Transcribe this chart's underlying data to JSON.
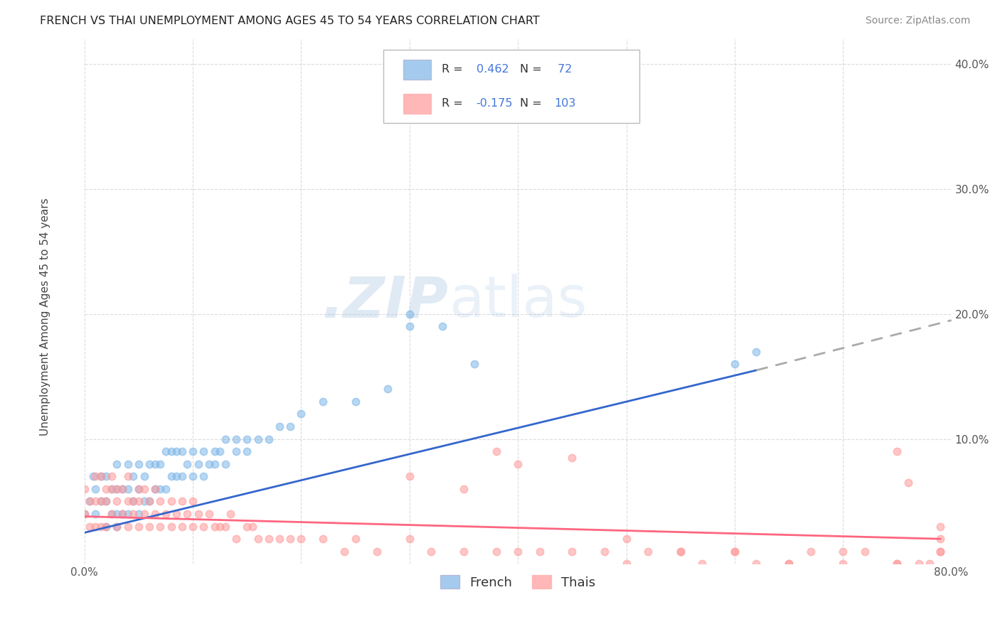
{
  "title": "FRENCH VS THAI UNEMPLOYMENT AMONG AGES 45 TO 54 YEARS CORRELATION CHART",
  "source": "Source: ZipAtlas.com",
  "ylabel": "Unemployment Among Ages 45 to 54 years",
  "xlim": [
    0.0,
    0.8
  ],
  "ylim": [
    0.0,
    0.42
  ],
  "french_color": "#7EB6E8",
  "thai_color": "#FF9999",
  "french_R": 0.462,
  "french_N": 72,
  "thai_R": -0.175,
  "thai_N": 103,
  "french_line_color": "#3366CC",
  "thai_line_color": "#FF6680",
  "background_color": "#FFFFFF",
  "grid_color": "#CCCCCC",
  "french_x": [
    0.0,
    0.005,
    0.008,
    0.01,
    0.01,
    0.015,
    0.015,
    0.02,
    0.02,
    0.02,
    0.025,
    0.025,
    0.03,
    0.03,
    0.03,
    0.03,
    0.035,
    0.035,
    0.04,
    0.04,
    0.04,
    0.045,
    0.045,
    0.05,
    0.05,
    0.05,
    0.055,
    0.055,
    0.06,
    0.06,
    0.065,
    0.065,
    0.07,
    0.07,
    0.075,
    0.075,
    0.08,
    0.08,
    0.085,
    0.085,
    0.09,
    0.09,
    0.095,
    0.1,
    0.1,
    0.105,
    0.11,
    0.11,
    0.115,
    0.12,
    0.12,
    0.125,
    0.13,
    0.13,
    0.14,
    0.14,
    0.15,
    0.15,
    0.16,
    0.17,
    0.18,
    0.19,
    0.2,
    0.22,
    0.25,
    0.28,
    0.3,
    0.3,
    0.33,
    0.36,
    0.6,
    0.62
  ],
  "french_y": [
    0.04,
    0.05,
    0.07,
    0.04,
    0.06,
    0.05,
    0.07,
    0.03,
    0.05,
    0.07,
    0.04,
    0.06,
    0.03,
    0.04,
    0.06,
    0.08,
    0.04,
    0.06,
    0.04,
    0.06,
    0.08,
    0.05,
    0.07,
    0.04,
    0.06,
    0.08,
    0.05,
    0.07,
    0.05,
    0.08,
    0.06,
    0.08,
    0.06,
    0.08,
    0.06,
    0.09,
    0.07,
    0.09,
    0.07,
    0.09,
    0.07,
    0.09,
    0.08,
    0.07,
    0.09,
    0.08,
    0.07,
    0.09,
    0.08,
    0.08,
    0.09,
    0.09,
    0.08,
    0.1,
    0.09,
    0.1,
    0.09,
    0.1,
    0.1,
    0.1,
    0.11,
    0.11,
    0.12,
    0.13,
    0.13,
    0.14,
    0.19,
    0.2,
    0.19,
    0.16,
    0.16,
    0.17
  ],
  "thai_x": [
    0.0,
    0.0,
    0.005,
    0.005,
    0.01,
    0.01,
    0.01,
    0.015,
    0.015,
    0.015,
    0.02,
    0.02,
    0.02,
    0.025,
    0.025,
    0.025,
    0.03,
    0.03,
    0.03,
    0.035,
    0.035,
    0.04,
    0.04,
    0.04,
    0.045,
    0.045,
    0.05,
    0.05,
    0.05,
    0.055,
    0.055,
    0.06,
    0.06,
    0.065,
    0.065,
    0.07,
    0.07,
    0.075,
    0.08,
    0.08,
    0.085,
    0.09,
    0.09,
    0.095,
    0.1,
    0.1,
    0.105,
    0.11,
    0.115,
    0.12,
    0.125,
    0.13,
    0.135,
    0.14,
    0.15,
    0.155,
    0.16,
    0.17,
    0.18,
    0.19,
    0.2,
    0.22,
    0.24,
    0.25,
    0.27,
    0.3,
    0.32,
    0.35,
    0.38,
    0.4,
    0.42,
    0.45,
    0.48,
    0.5,
    0.52,
    0.55,
    0.57,
    0.6,
    0.62,
    0.65,
    0.67,
    0.7,
    0.72,
    0.75,
    0.77,
    0.79,
    0.3,
    0.35,
    0.4,
    0.45,
    0.5,
    0.55,
    0.6,
    0.65,
    0.7,
    0.75,
    0.78,
    0.79,
    0.79,
    0.79,
    0.38,
    0.75,
    0.76
  ],
  "thai_y": [
    0.04,
    0.06,
    0.03,
    0.05,
    0.03,
    0.05,
    0.07,
    0.03,
    0.05,
    0.07,
    0.03,
    0.05,
    0.06,
    0.04,
    0.06,
    0.07,
    0.03,
    0.05,
    0.06,
    0.04,
    0.06,
    0.03,
    0.05,
    0.07,
    0.04,
    0.05,
    0.03,
    0.05,
    0.06,
    0.04,
    0.06,
    0.03,
    0.05,
    0.04,
    0.06,
    0.03,
    0.05,
    0.04,
    0.03,
    0.05,
    0.04,
    0.03,
    0.05,
    0.04,
    0.03,
    0.05,
    0.04,
    0.03,
    0.04,
    0.03,
    0.03,
    0.03,
    0.04,
    0.02,
    0.03,
    0.03,
    0.02,
    0.02,
    0.02,
    0.02,
    0.02,
    0.02,
    0.01,
    0.02,
    0.01,
    0.02,
    0.01,
    0.01,
    0.01,
    0.01,
    0.01,
    0.01,
    0.01,
    0.0,
    0.01,
    0.01,
    0.0,
    0.01,
    0.0,
    0.0,
    0.01,
    0.0,
    0.01,
    0.0,
    0.0,
    0.01,
    0.07,
    0.06,
    0.08,
    0.085,
    0.02,
    0.01,
    0.01,
    0.0,
    0.01,
    0.0,
    0.0,
    0.01,
    0.02,
    0.03,
    0.09,
    0.09,
    0.065
  ],
  "french_line": [
    [
      0.0,
      0.025
    ],
    [
      0.62,
      0.155
    ]
  ],
  "french_line_dash": [
    [
      0.62,
      0.155
    ],
    [
      0.8,
      0.195
    ]
  ],
  "thai_line": [
    [
      0.0,
      0.038
    ],
    [
      0.79,
      0.02
    ]
  ]
}
